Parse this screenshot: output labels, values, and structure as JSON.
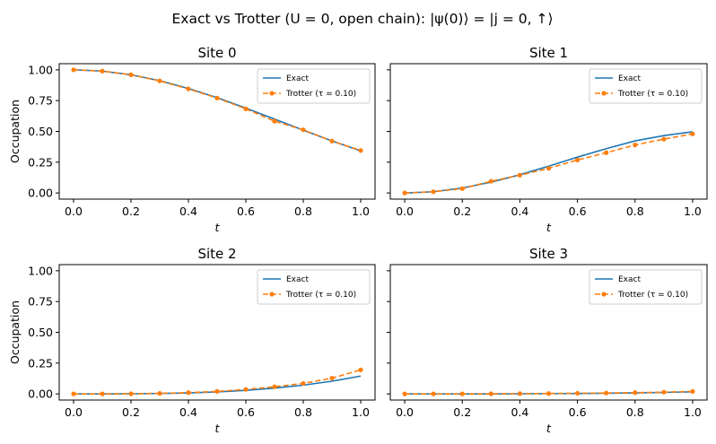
{
  "figure_title": "Exact vs Trotter (U = 0, open chain): |ψ(0)⟩ = |j = 0, ↑⟩",
  "colors": {
    "exact": "#1f77b4",
    "trotter": "#ff7f0e",
    "axes": "#000000",
    "background": "#ffffff"
  },
  "chart_data": [
    {
      "type": "line",
      "title": "Site 0",
      "xlabel": "t",
      "ylabel": "Occupation",
      "xlim": [
        -0.05,
        1.05
      ],
      "ylim": [
        -0.05,
        1.05
      ],
      "xticks": [
        0.0,
        0.2,
        0.4,
        0.6,
        0.8,
        1.0
      ],
      "xtick_labels": [
        "0.0",
        "0.2",
        "0.4",
        "0.6",
        "0.8",
        "1.0"
      ],
      "yticks": [
        0.0,
        0.25,
        0.5,
        0.75,
        1.0
      ],
      "ytick_labels": [
        "0.00",
        "0.25",
        "0.50",
        "0.75",
        "1.00"
      ],
      "legend_position": "top-right",
      "series": [
        {
          "name": "Exact",
          "style": "solid",
          "x": [
            0.0,
            0.1,
            0.2,
            0.3,
            0.4,
            0.5,
            0.6,
            0.7,
            0.8,
            0.9,
            1.0
          ],
          "values": [
            1.0,
            0.99,
            0.96,
            0.912,
            0.849,
            0.774,
            0.689,
            0.6,
            0.51,
            0.423,
            0.342
          ]
        },
        {
          "name": "Trotter (τ = 0.10)",
          "style": "dashed-marker",
          "x": [
            0.0,
            0.1,
            0.2,
            0.3,
            0.4,
            0.5,
            0.6,
            0.7,
            0.8,
            0.9,
            1.0
          ],
          "values": [
            1.0,
            0.99,
            0.96,
            0.91,
            0.845,
            0.771,
            0.683,
            0.583,
            0.513,
            0.421,
            0.345
          ]
        }
      ]
    },
    {
      "type": "line",
      "title": "Site 1",
      "xlabel": "t",
      "ylabel": "",
      "xlim": [
        -0.05,
        1.05
      ],
      "ylim": [
        -0.05,
        1.05
      ],
      "xticks": [
        0.0,
        0.2,
        0.4,
        0.6,
        0.8,
        1.0
      ],
      "xtick_labels": [
        "0.0",
        "0.2",
        "0.4",
        "0.6",
        "0.8",
        "1.0"
      ],
      "yticks": [
        0.0,
        0.25,
        0.5,
        0.75,
        1.0
      ],
      "ytick_labels": [],
      "legend_position": "top-right",
      "series": [
        {
          "name": "Exact",
          "style": "solid",
          "x": [
            0.0,
            0.1,
            0.2,
            0.3,
            0.4,
            0.5,
            0.6,
            0.7,
            0.8,
            0.9,
            1.0
          ],
          "values": [
            0.0,
            0.01,
            0.04,
            0.088,
            0.148,
            0.218,
            0.291,
            0.36,
            0.423,
            0.466,
            0.497
          ]
        },
        {
          "name": "Trotter (τ = 0.10)",
          "style": "dashed-marker",
          "x": [
            0.0,
            0.1,
            0.2,
            0.3,
            0.4,
            0.5,
            0.6,
            0.7,
            0.8,
            0.9,
            1.0
          ],
          "values": [
            0.0,
            0.01,
            0.035,
            0.095,
            0.145,
            0.2,
            0.268,
            0.327,
            0.39,
            0.437,
            0.48
          ]
        }
      ]
    },
    {
      "type": "line",
      "title": "Site 2",
      "xlabel": "t",
      "ylabel": "Occupation",
      "xlim": [
        -0.05,
        1.05
      ],
      "ylim": [
        -0.05,
        1.05
      ],
      "xticks": [
        0.0,
        0.2,
        0.4,
        0.6,
        0.8,
        1.0
      ],
      "xtick_labels": [
        "0.0",
        "0.2",
        "0.4",
        "0.6",
        "0.8",
        "1.0"
      ],
      "yticks": [
        0.0,
        0.25,
        0.5,
        0.75,
        1.0
      ],
      "ytick_labels": [
        "0.00",
        "0.25",
        "0.50",
        "0.75",
        "1.00"
      ],
      "legend_position": "top-right",
      "series": [
        {
          "name": "Exact",
          "style": "solid",
          "x": [
            0.0,
            0.1,
            0.2,
            0.3,
            0.4,
            0.5,
            0.6,
            0.7,
            0.8,
            0.9,
            1.0
          ],
          "values": [
            0.0,
            0.0,
            0.001,
            0.003,
            0.008,
            0.016,
            0.029,
            0.047,
            0.071,
            0.103,
            0.145
          ]
        },
        {
          "name": "Trotter (τ = 0.10)",
          "style": "dashed-marker",
          "x": [
            0.0,
            0.1,
            0.2,
            0.3,
            0.4,
            0.5,
            0.6,
            0.7,
            0.8,
            0.9,
            1.0
          ],
          "values": [
            0.0,
            0.0,
            0.001,
            0.004,
            0.01,
            0.02,
            0.036,
            0.058,
            0.085,
            0.128,
            0.195
          ]
        }
      ]
    },
    {
      "type": "line",
      "title": "Site 3",
      "xlabel": "t",
      "ylabel": "",
      "xlim": [
        -0.05,
        1.05
      ],
      "ylim": [
        -0.05,
        1.05
      ],
      "xticks": [
        0.0,
        0.2,
        0.4,
        0.6,
        0.8,
        1.0
      ],
      "xtick_labels": [
        "0.0",
        "0.2",
        "0.4",
        "0.6",
        "0.8",
        "1.0"
      ],
      "yticks": [
        0.0,
        0.25,
        0.5,
        0.75,
        1.0
      ],
      "ytick_labels": [],
      "legend_position": "top-right",
      "series": [
        {
          "name": "Exact",
          "style": "solid",
          "x": [
            0.0,
            0.1,
            0.2,
            0.3,
            0.4,
            0.5,
            0.6,
            0.7,
            0.8,
            0.9,
            1.0
          ],
          "values": [
            0.0,
            0.0,
            0.0,
            0.0,
            0.001,
            0.002,
            0.003,
            0.005,
            0.008,
            0.012,
            0.017
          ]
        },
        {
          "name": "Trotter (τ = 0.10)",
          "style": "dashed-marker",
          "x": [
            0.0,
            0.1,
            0.2,
            0.3,
            0.4,
            0.5,
            0.6,
            0.7,
            0.8,
            0.9,
            1.0
          ],
          "values": [
            0.0,
            0.0,
            0.0,
            0.001,
            0.002,
            0.003,
            0.005,
            0.007,
            0.01,
            0.014,
            0.02
          ]
        }
      ]
    }
  ]
}
